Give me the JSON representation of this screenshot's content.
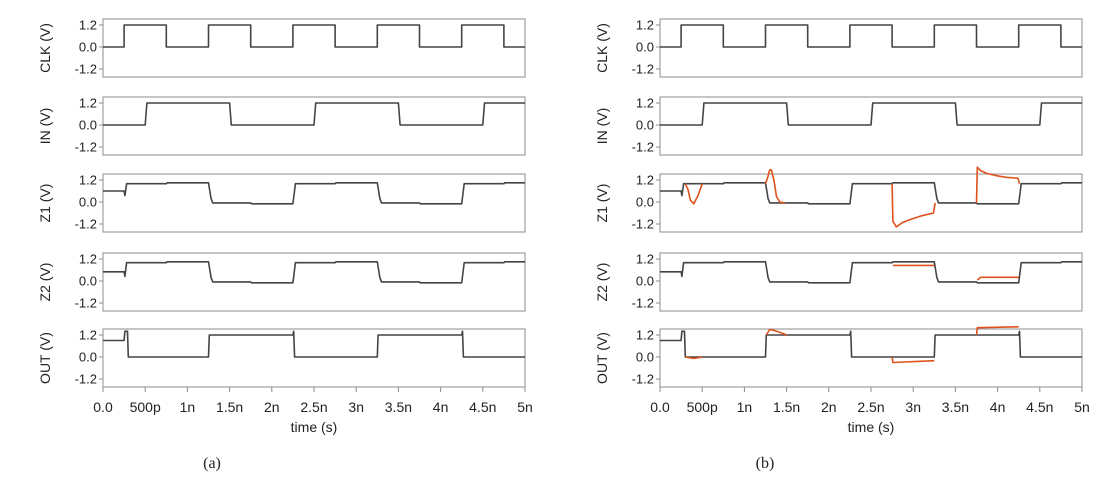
{
  "captions": {
    "a": "(a)",
    "b": "(b)"
  },
  "colors": {
    "trace": "#444444",
    "glitch": "#e0521c",
    "axis": "#8c8c8c",
    "text": "#222222"
  },
  "chart_data": [
    {
      "type": "line",
      "panel": "(a)",
      "xlabel": "time (s)",
      "xlim": [
        0,
        5
      ],
      "x_ticks": [
        {
          "v": 0,
          "label": "0.0"
        },
        {
          "v": 0.5,
          "label": "500p"
        },
        {
          "v": 1,
          "label": "1n"
        },
        {
          "v": 1.5,
          "label": "1.5n"
        },
        {
          "v": 2,
          "label": "2n"
        },
        {
          "v": 2.5,
          "label": "2.5n"
        },
        {
          "v": 3,
          "label": "3n"
        },
        {
          "v": 3.5,
          "label": "3.5n"
        },
        {
          "v": 4,
          "label": "4n"
        },
        {
          "v": 4.5,
          "label": "4.5n"
        },
        {
          "v": 5,
          "label": "5n"
        }
      ],
      "y_ticks": [
        {
          "v": 1.2,
          "label": "1.2"
        },
        {
          "v": 0,
          "label": "0.0"
        },
        {
          "v": -1.2,
          "label": "-1.2"
        }
      ],
      "ylim": [
        -1.2,
        1.2
      ],
      "subplots": [
        {
          "ylabel": "CLK (V)",
          "series": [
            {
              "x": [
                0,
                0.25,
                0.25,
                0.75,
                0.75,
                1.25,
                1.25,
                1.75,
                1.75,
                2.25,
                2.25,
                2.75,
                2.75,
                3.25,
                3.25,
                3.75,
                3.75,
                4.25,
                4.25,
                4.75,
                4.75,
                5
              ],
              "y": [
                0,
                0,
                1.2,
                1.2,
                0,
                0,
                1.2,
                1.2,
                0,
                0,
                1.2,
                1.2,
                0,
                0,
                1.2,
                1.2,
                0,
                0,
                1.2,
                1.2,
                0,
                0
              ]
            }
          ]
        },
        {
          "ylabel": "IN (V)",
          "series": [
            {
              "x": [
                0,
                0.5,
                0.52,
                1.5,
                1.52,
                2.5,
                2.52,
                3.5,
                3.52,
                4.5,
                4.52,
                5
              ],
              "y": [
                0,
                0,
                1.2,
                1.2,
                0,
                0,
                1.2,
                1.2,
                0,
                0,
                1.2,
                1.2
              ]
            }
          ]
        },
        {
          "ylabel": "Z1 (V)",
          "series": [
            {
              "x": [
                0,
                0.25,
                0.26,
                0.28,
                0.3,
                0.75,
                0.76,
                1.25,
                1.28,
                1.3,
                1.75,
                1.76,
                2.25,
                2.28,
                2.75,
                2.76,
                3.25,
                3.28,
                3.3,
                3.75,
                3.76,
                4.25,
                4.28,
                4.75,
                4.76,
                5
              ],
              "y": [
                0.6,
                0.6,
                0.35,
                1.0,
                1.0,
                1.0,
                1.05,
                1.05,
                0.2,
                -0.05,
                -0.05,
                -0.1,
                -0.1,
                1.0,
                1.0,
                1.05,
                1.05,
                0.2,
                -0.05,
                -0.05,
                -0.1,
                -0.1,
                1.0,
                1.0,
                1.05,
                1.05
              ]
            }
          ]
        },
        {
          "ylabel": "Z2 (V)",
          "series": [
            {
              "x": [
                0,
                0.25,
                0.26,
                0.28,
                0.3,
                0.75,
                0.76,
                1.25,
                1.28,
                1.3,
                1.75,
                1.76,
                2.25,
                2.28,
                2.75,
                2.76,
                3.25,
                3.28,
                3.3,
                3.75,
                3.76,
                4.25,
                4.28,
                4.75,
                4.76,
                5
              ],
              "y": [
                0.5,
                0.5,
                0.25,
                1.0,
                1.0,
                1.0,
                1.05,
                1.05,
                0.2,
                -0.05,
                -0.05,
                -0.1,
                -0.1,
                1.0,
                1.0,
                1.05,
                1.05,
                0.2,
                -0.05,
                -0.05,
                -0.1,
                -0.1,
                1.0,
                1.0,
                1.05,
                1.05
              ]
            }
          ]
        },
        {
          "ylabel": "OUT (V)",
          "series": [
            {
              "x": [
                0,
                0.25,
                0.26,
                0.29,
                0.3,
                1.25,
                1.26,
                2.25,
                2.26,
                2.27,
                3.25,
                3.26,
                4.25,
                4.26,
                4.27,
                5
              ],
              "y": [
                0.9,
                0.9,
                1.4,
                1.4,
                0,
                0,
                1.2,
                1.2,
                1.4,
                0,
                0,
                1.2,
                1.2,
                1.4,
                0,
                0
              ]
            }
          ]
        }
      ]
    },
    {
      "type": "line",
      "panel": "(b)",
      "xlabel": "time (s)",
      "xlim": [
        0,
        5
      ],
      "x_ticks": [
        {
          "v": 0,
          "label": "0.0"
        },
        {
          "v": 0.5,
          "label": "500p"
        },
        {
          "v": 1,
          "label": "1n"
        },
        {
          "v": 1.5,
          "label": "1.5n"
        },
        {
          "v": 2,
          "label": "2n"
        },
        {
          "v": 2.5,
          "label": "2.5n"
        },
        {
          "v": 3,
          "label": "3n"
        },
        {
          "v": 3.5,
          "label": "3.5n"
        },
        {
          "v": 4,
          "label": "4n"
        },
        {
          "v": 4.5,
          "label": "4.5n"
        },
        {
          "v": 5,
          "label": "5n"
        }
      ],
      "y_ticks": [
        {
          "v": 1.2,
          "label": "1.2"
        },
        {
          "v": 0,
          "label": "0.0"
        },
        {
          "v": -1.2,
          "label": "-1.2"
        }
      ],
      "ylim": [
        -1.2,
        1.2
      ],
      "subplots": [
        {
          "ylabel": "CLK (V)",
          "series": [
            {
              "x": [
                0,
                0.25,
                0.25,
                0.75,
                0.75,
                1.25,
                1.25,
                1.75,
                1.75,
                2.25,
                2.25,
                2.75,
                2.75,
                3.25,
                3.25,
                3.75,
                3.75,
                4.25,
                4.25,
                4.75,
                4.75,
                5
              ],
              "y": [
                0,
                0,
                1.2,
                1.2,
                0,
                0,
                1.2,
                1.2,
                0,
                0,
                1.2,
                1.2,
                0,
                0,
                1.2,
                1.2,
                0,
                0,
                1.2,
                1.2,
                0,
                0
              ]
            }
          ]
        },
        {
          "ylabel": "IN (V)",
          "series": [
            {
              "x": [
                0,
                0.5,
                0.52,
                1.5,
                1.52,
                2.5,
                2.52,
                3.5,
                3.52,
                4.5,
                4.52,
                5
              ],
              "y": [
                0,
                0,
                1.2,
                1.2,
                0,
                0,
                1.2,
                1.2,
                0,
                0,
                1.2,
                1.2
              ]
            }
          ]
        },
        {
          "ylabel": "Z1 (V)",
          "series": [
            {
              "x": [
                0,
                0.25,
                0.26,
                0.28,
                0.3,
                0.75,
                0.76,
                1.25,
                1.28,
                1.3,
                1.75,
                1.76,
                2.25,
                2.28,
                2.75,
                2.76,
                3.25,
                3.28,
                3.3,
                3.75,
                3.76,
                4.25,
                4.28,
                4.75,
                4.76,
                5
              ],
              "y": [
                0.6,
                0.6,
                0.35,
                1.0,
                1.0,
                1.0,
                1.05,
                1.05,
                0.2,
                -0.05,
                -0.05,
                -0.1,
                -0.1,
                1.0,
                1.0,
                1.05,
                1.05,
                0.2,
                -0.05,
                -0.05,
                -0.1,
                -0.1,
                1.0,
                1.0,
                1.05,
                1.05
              ]
            },
            {
              "x": [
                0.3,
                0.33,
                0.36,
                0.4,
                0.45,
                0.5
              ],
              "y": [
                1.0,
                0.7,
                0.1,
                -0.1,
                0.35,
                1.0
              ]
            },
            {
              "x": [
                1.25,
                1.27,
                1.3,
                1.32,
                1.35,
                1.38,
                1.42,
                1.48
              ],
              "y": [
                1.0,
                1.25,
                1.75,
                1.75,
                1.2,
                0.3,
                0.0,
                -0.05
              ]
            },
            {
              "x": [
                2.75,
                2.76,
                2.8,
                2.88,
                2.97,
                3.1,
                3.24,
                3.26
              ],
              "y": [
                1.0,
                -1.05,
                -1.35,
                -1.1,
                -0.95,
                -0.75,
                -0.6,
                -0.05
              ]
            },
            {
              "x": [
                3.75,
                3.76,
                3.8,
                3.88,
                3.97,
                4.1,
                4.24,
                4.26
              ],
              "y": [
                -0.05,
                1.9,
                1.7,
                1.55,
                1.45,
                1.35,
                1.3,
                1.0
              ]
            }
          ]
        },
        {
          "ylabel": "Z2 (V)",
          "series": [
            {
              "x": [
                0,
                0.25,
                0.26,
                0.28,
                0.3,
                0.75,
                0.76,
                1.25,
                1.28,
                1.3,
                1.75,
                1.76,
                2.25,
                2.28,
                2.75,
                2.76,
                3.25,
                3.28,
                3.3,
                3.75,
                3.76,
                4.25,
                4.28,
                4.75,
                4.76,
                5
              ],
              "y": [
                0.5,
                0.5,
                0.25,
                1.0,
                1.0,
                1.0,
                1.05,
                1.05,
                0.2,
                -0.05,
                -0.05,
                -0.1,
                -0.1,
                1.0,
                1.0,
                1.05,
                1.05,
                0.2,
                -0.05,
                -0.05,
                -0.1,
                -0.1,
                1.0,
                1.0,
                1.05,
                1.05
              ]
            },
            {
              "x": [
                2.76,
                3.25
              ],
              "y": [
                0.85,
                0.85
              ]
            },
            {
              "x": [
                3.76,
                3.8,
                4.25
              ],
              "y": [
                0.05,
                0.2,
                0.2
              ]
            }
          ]
        },
        {
          "ylabel": "OUT (V)",
          "series": [
            {
              "x": [
                0,
                0.25,
                0.26,
                0.29,
                0.3,
                1.25,
                1.26,
                2.25,
                2.26,
                2.27,
                3.25,
                3.26,
                4.25,
                4.26,
                4.27,
                5
              ],
              "y": [
                0.9,
                0.9,
                1.4,
                1.4,
                0,
                0,
                1.2,
                1.2,
                1.4,
                0,
                0,
                1.2,
                1.2,
                1.4,
                0,
                0
              ]
            },
            {
              "x": [
                0.3,
                0.4,
                0.5
              ],
              "y": [
                0,
                -0.08,
                0
              ]
            },
            {
              "x": [
                1.26,
                1.3,
                1.35,
                1.45,
                1.5
              ],
              "y": [
                1.2,
                1.5,
                1.45,
                1.3,
                1.2
              ]
            },
            {
              "x": [
                2.75,
                2.76,
                3.25
              ],
              "y": [
                0,
                -0.3,
                -0.2
              ]
            },
            {
              "x": [
                3.75,
                3.76,
                4.25
              ],
              "y": [
                1.2,
                1.6,
                1.65
              ]
            }
          ]
        }
      ]
    }
  ]
}
